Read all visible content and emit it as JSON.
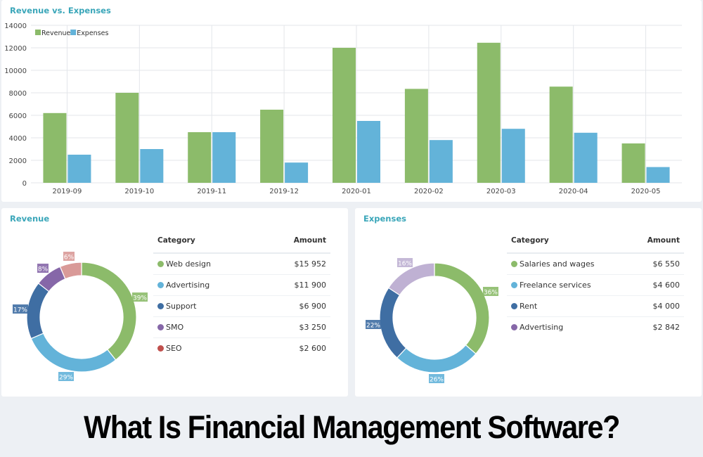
{
  "bar_chart": {
    "title": "Revenue vs. Expenses",
    "legend": [
      {
        "label": "Revenue",
        "color": "#8cbb6a"
      },
      {
        "label": "Expenses",
        "color": "#63b3d9"
      }
    ]
  },
  "revenue_panel": {
    "title": "Revenue",
    "headers": {
      "category": "Category",
      "amount": "Amount"
    },
    "rows": [
      {
        "category": "Web design",
        "amount": "$15 952",
        "color": "#8cbb6a",
        "pct": "39%"
      },
      {
        "category": "Advertising",
        "amount": "$11 900",
        "color": "#63b3d9",
        "pct": "29%"
      },
      {
        "category": "Support",
        "amount": "$6 900",
        "color": "#3f6ea3",
        "pct": "17%"
      },
      {
        "category": "SMO",
        "amount": "$3 250",
        "color": "#8667a8",
        "pct": "8%"
      },
      {
        "category": "SEO",
        "amount": "$2 600",
        "color": "#c0504d",
        "pct": "6%"
      }
    ]
  },
  "expenses_panel": {
    "title": "Expenses",
    "headers": {
      "category": "Category",
      "amount": "Amount"
    },
    "rows": [
      {
        "category": "Salaries and wages",
        "amount": "$6 550",
        "color": "#8cbb6a",
        "pct": "36%"
      },
      {
        "category": "Freelance services",
        "amount": "$4 600",
        "color": "#63b3d9",
        "pct": "26%"
      },
      {
        "category": "Rent",
        "amount": "$4 000",
        "color": "#3f6ea3",
        "pct": "22%"
      },
      {
        "category": "Advertising",
        "amount": "$2 842",
        "color": "#8667a8",
        "pct": "16%"
      }
    ]
  },
  "footer": {
    "title": "What Is Financial Management Software?"
  },
  "chart_data": [
    {
      "type": "bar",
      "title": "Revenue vs. Expenses",
      "xlabel": "",
      "ylabel": "",
      "categories": [
        "2019-09",
        "2019-10",
        "2019-11",
        "2019-12",
        "2020-01",
        "2020-02",
        "2020-03",
        "2020-04",
        "2020-05"
      ],
      "series": [
        {
          "name": "Revenue",
          "color": "#8cbb6a",
          "values": [
            6200,
            8000,
            4500,
            6500,
            12000,
            8350,
            12450,
            8550,
            3500
          ]
        },
        {
          "name": "Expenses",
          "color": "#63b3d9",
          "values": [
            2500,
            3000,
            4500,
            1800,
            5500,
            3800,
            4800,
            4450,
            1400
          ]
        }
      ],
      "yticks": [
        0,
        2000,
        4000,
        6000,
        8000,
        10000,
        12000,
        14000
      ],
      "ylim": [
        0,
        14000
      ],
      "grid": true,
      "legend_position": "top-left"
    },
    {
      "type": "pie",
      "title": "Revenue",
      "donut": true,
      "categories": [
        "Web design",
        "Advertising",
        "Support",
        "SMO",
        "SEO"
      ],
      "values": [
        15952,
        11900,
        6900,
        3250,
        2600
      ],
      "percent_labels": [
        "39%",
        "29%",
        "17%",
        "8%",
        "6%"
      ],
      "colors": [
        "#8cbb6a",
        "#63b3d9",
        "#3f6ea3",
        "#8667a8",
        "#d99a98"
      ]
    },
    {
      "type": "pie",
      "title": "Expenses",
      "donut": true,
      "categories": [
        "Salaries and wages",
        "Freelance services",
        "Rent",
        "Advertising"
      ],
      "values": [
        6550,
        4600,
        4000,
        2842
      ],
      "percent_labels": [
        "36%",
        "26%",
        "22%",
        "16%"
      ],
      "colors": [
        "#8cbb6a",
        "#63b3d9",
        "#3f6ea3",
        "#bfb1d3"
      ]
    }
  ]
}
